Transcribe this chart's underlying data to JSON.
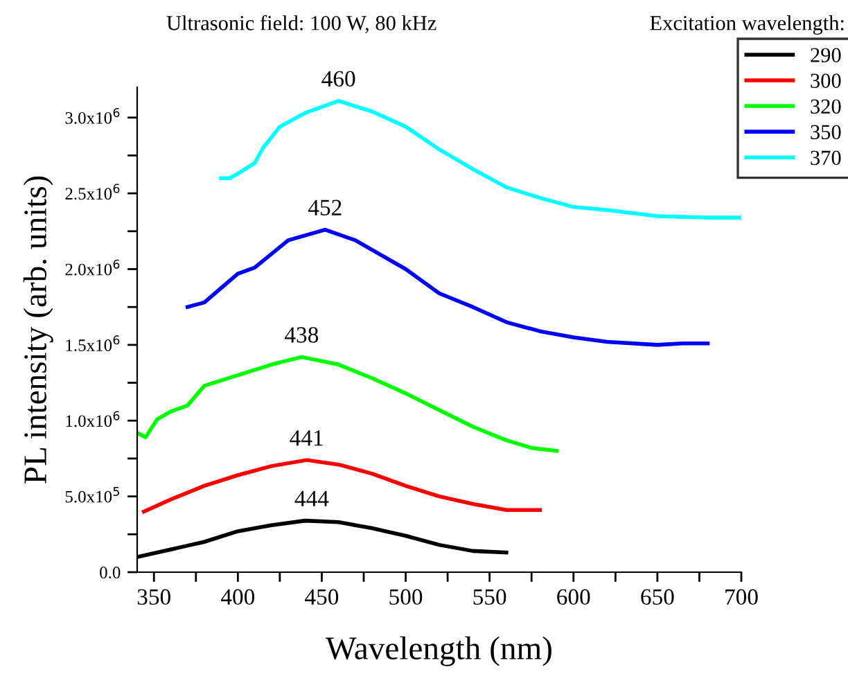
{
  "chart_data": {
    "type": "line",
    "xlabel": "Wavelength (nm)",
    "ylabel": "PL intensity (arb. units)",
    "legend_title": "Excitation wavelength:",
    "annotations": [
      "Ultrasonic field: 100 W, 80 kHz",
      {
        "text": "444",
        "x": 444,
        "y": 340000
      },
      {
        "text": "441",
        "x": 441,
        "y": 740000
      },
      {
        "text": "438",
        "x": 438,
        "y": 1420000
      },
      {
        "text": "452",
        "x": 452,
        "y": 2260000
      },
      {
        "text": "460",
        "x": 460,
        "y": 3110000
      }
    ],
    "series": [
      {
        "name": "290",
        "color": "#000000",
        "x": [
          340,
          360,
          380,
          400,
          420,
          440,
          460,
          480,
          500,
          520,
          540,
          560
        ],
        "values": [
          100000,
          150000,
          200000,
          270000,
          310000,
          340000,
          330000,
          290000,
          240000,
          180000,
          140000,
          130000
        ]
      },
      {
        "name": "300",
        "color": "#ff0000",
        "x": [
          344,
          360,
          380,
          400,
          420,
          441,
          460,
          480,
          500,
          520,
          540,
          560,
          580
        ],
        "values": [
          400000,
          480000,
          570000,
          640000,
          700000,
          740000,
          710000,
          650000,
          570000,
          500000,
          450000,
          410000,
          410000
        ]
      },
      {
        "name": "320",
        "color": "#00ff00",
        "x": [
          340,
          345,
          352,
          360,
          370,
          380,
          400,
          420,
          438,
          460,
          480,
          500,
          520,
          540,
          560,
          575,
          590
        ],
        "values": [
          920000,
          890000,
          1010000,
          1060000,
          1100000,
          1230000,
          1300000,
          1370000,
          1420000,
          1370000,
          1280000,
          1180000,
          1070000,
          960000,
          870000,
          820000,
          800000
        ]
      },
      {
        "name": "350",
        "color": "#0000ff",
        "x": [
          370,
          380,
          400,
          410,
          430,
          452,
          470,
          500,
          520,
          540,
          560,
          580,
          600,
          620,
          650,
          665,
          680
        ],
        "values": [
          1750000,
          1780000,
          1970000,
          2010000,
          2190000,
          2260000,
          2190000,
          2000000,
          1840000,
          1750000,
          1650000,
          1590000,
          1550000,
          1520000,
          1500000,
          1510000,
          1510000
        ]
      },
      {
        "name": "370",
        "color": "#00ffff",
        "x": [
          390,
          395,
          400,
          410,
          415,
          420,
          425,
          440,
          460,
          480,
          500,
          520,
          540,
          560,
          580,
          600,
          620,
          650,
          680,
          700
        ],
        "values": [
          2600000,
          2600000,
          2630000,
          2700000,
          2800000,
          2870000,
          2940000,
          3030000,
          3110000,
          3040000,
          2940000,
          2790000,
          2660000,
          2540000,
          2470000,
          2410000,
          2390000,
          2350000,
          2340000,
          2340000
        ]
      }
    ],
    "xlim": [
      340,
      700
    ],
    "xticks": [
      350,
      {
        "value": 375,
        "label": null
      },
      400,
      {
        "value": 425,
        "label": null
      },
      450,
      {
        "value": 475,
        "label": null
      },
      500,
      {
        "value": 525,
        "label": null
      },
      550,
      {
        "value": 575,
        "label": null
      },
      600,
      {
        "value": 625,
        "label": null
      },
      650,
      {
        "value": 675,
        "label": null
      },
      700
    ],
    "ylim": [
      0,
      3200000
    ],
    "yticks": [
      {
        "value": 0,
        "label": "0.0"
      },
      {
        "value": 250000,
        "label": null
      },
      {
        "value": 500000,
        "label": "5.0x10$^{5}$"
      },
      {
        "value": 750000,
        "label": null
      },
      {
        "value": 1000000,
        "label": "1.0x10$^{6}$"
      },
      {
        "value": 1250000,
        "label": null
      },
      {
        "value": 1500000,
        "label": "1.5x10$^{6}$"
      },
      {
        "value": 1750000,
        "label": null
      },
      {
        "value": 2000000,
        "label": "2.0x10$^{6}$"
      },
      {
        "value": 2250000,
        "label": null
      },
      {
        "value": 2500000,
        "label": "2.5x10$^{6}$"
      },
      {
        "value": 2750000,
        "label": null
      },
      {
        "value": 3000000,
        "label": "3.0x10$^{6}$"
      }
    ],
    "grid": false,
    "legend": "top right",
    "marker": "none",
    "line_style": "solid"
  }
}
